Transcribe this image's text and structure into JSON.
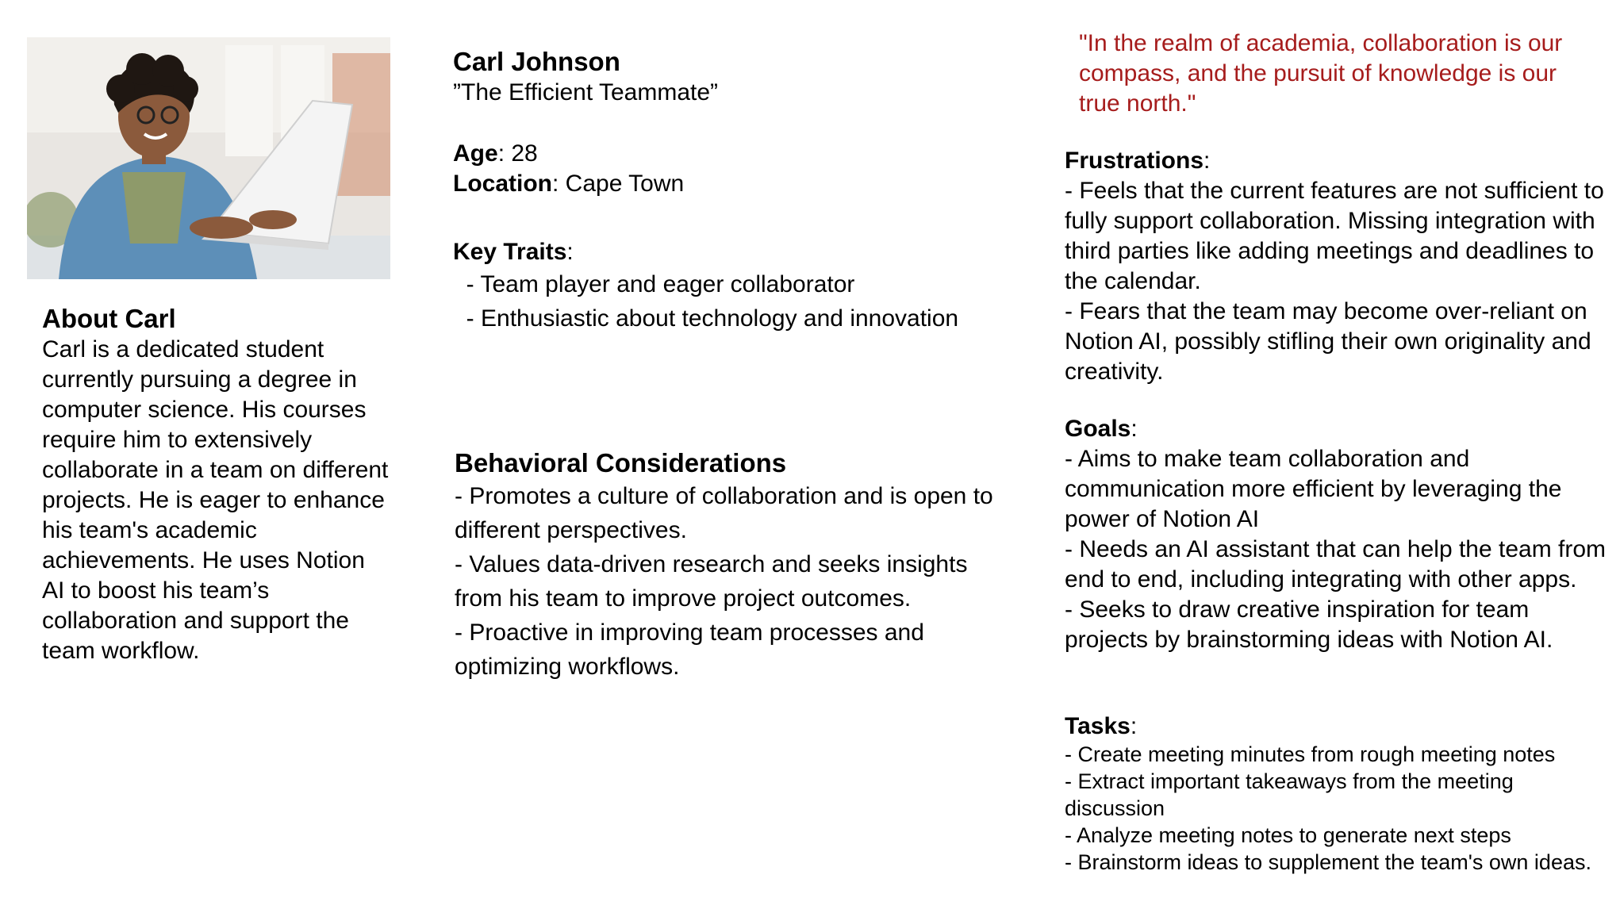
{
  "persona": {
    "name": "Carl Johnson",
    "nickname": "”The Efficient Teammate”",
    "age_label": "Age",
    "age_value": ": 28",
    "location_label": "Location",
    "location_value": ": Cape Town",
    "photo_description": "smiling-student-with-laptop"
  },
  "about": {
    "title": "About Carl",
    "body": "Carl is a dedicated student currently pursuing a degree in computer science. His courses require him to extensively collaborate in a team on different projects. He is eager to enhance his team's academic achievements. He uses Notion AI to boost his team’s collaboration and support the team workflow."
  },
  "key_traits": {
    "label": "Key Traits",
    "suffix": ":",
    "items": [
      "  - Team player and eager collaborator",
      "  - Enthusiastic about technology and innovation"
    ]
  },
  "behavioral": {
    "title": "Behavioral Considerations",
    "items": [
      "- Promotes a culture of collaboration and is open to different perspectives.",
      "- Values data-driven research and seeks insights from his team to improve project outcomes.",
      "- Proactive in improving team processes and optimizing workflows."
    ]
  },
  "quote": "\"In the realm of academia, collaboration is our compass, and the pursuit of knowledge is our true north.\"",
  "frustrations": {
    "label": "Frustrations",
    "suffix": ":",
    "items": [
      "- Feels that the current features are not sufficient to fully support collaboration. Missing integration with third parties like adding meetings and deadlines to the calendar.",
      "- Fears that the team may become over-reliant on Notion AI, possibly stifling their own originality and creativity."
    ]
  },
  "goals": {
    "label": "Goals",
    "suffix": ":",
    "items": [
      "-  Aims to make team collaboration and communication more efficient by leveraging the power of Notion AI",
      "- Needs an AI assistant that can help the team from end to end, including integrating with other apps.",
      "- Seeks to draw creative inspiration for team projects by brainstorming ideas with Notion AI."
    ]
  },
  "tasks": {
    "label": "Tasks",
    "suffix": ":",
    "items": [
      "- Create meeting minutes from rough meeting notes",
      "- Extract important takeaways from the meeting discussion",
      "- Analyze meeting notes to generate next steps",
      "- Brainstorm ideas to supplement the team's own ideas."
    ]
  },
  "colors": {
    "quote": "#a61c1c",
    "text": "#000000",
    "background": "#ffffff"
  }
}
